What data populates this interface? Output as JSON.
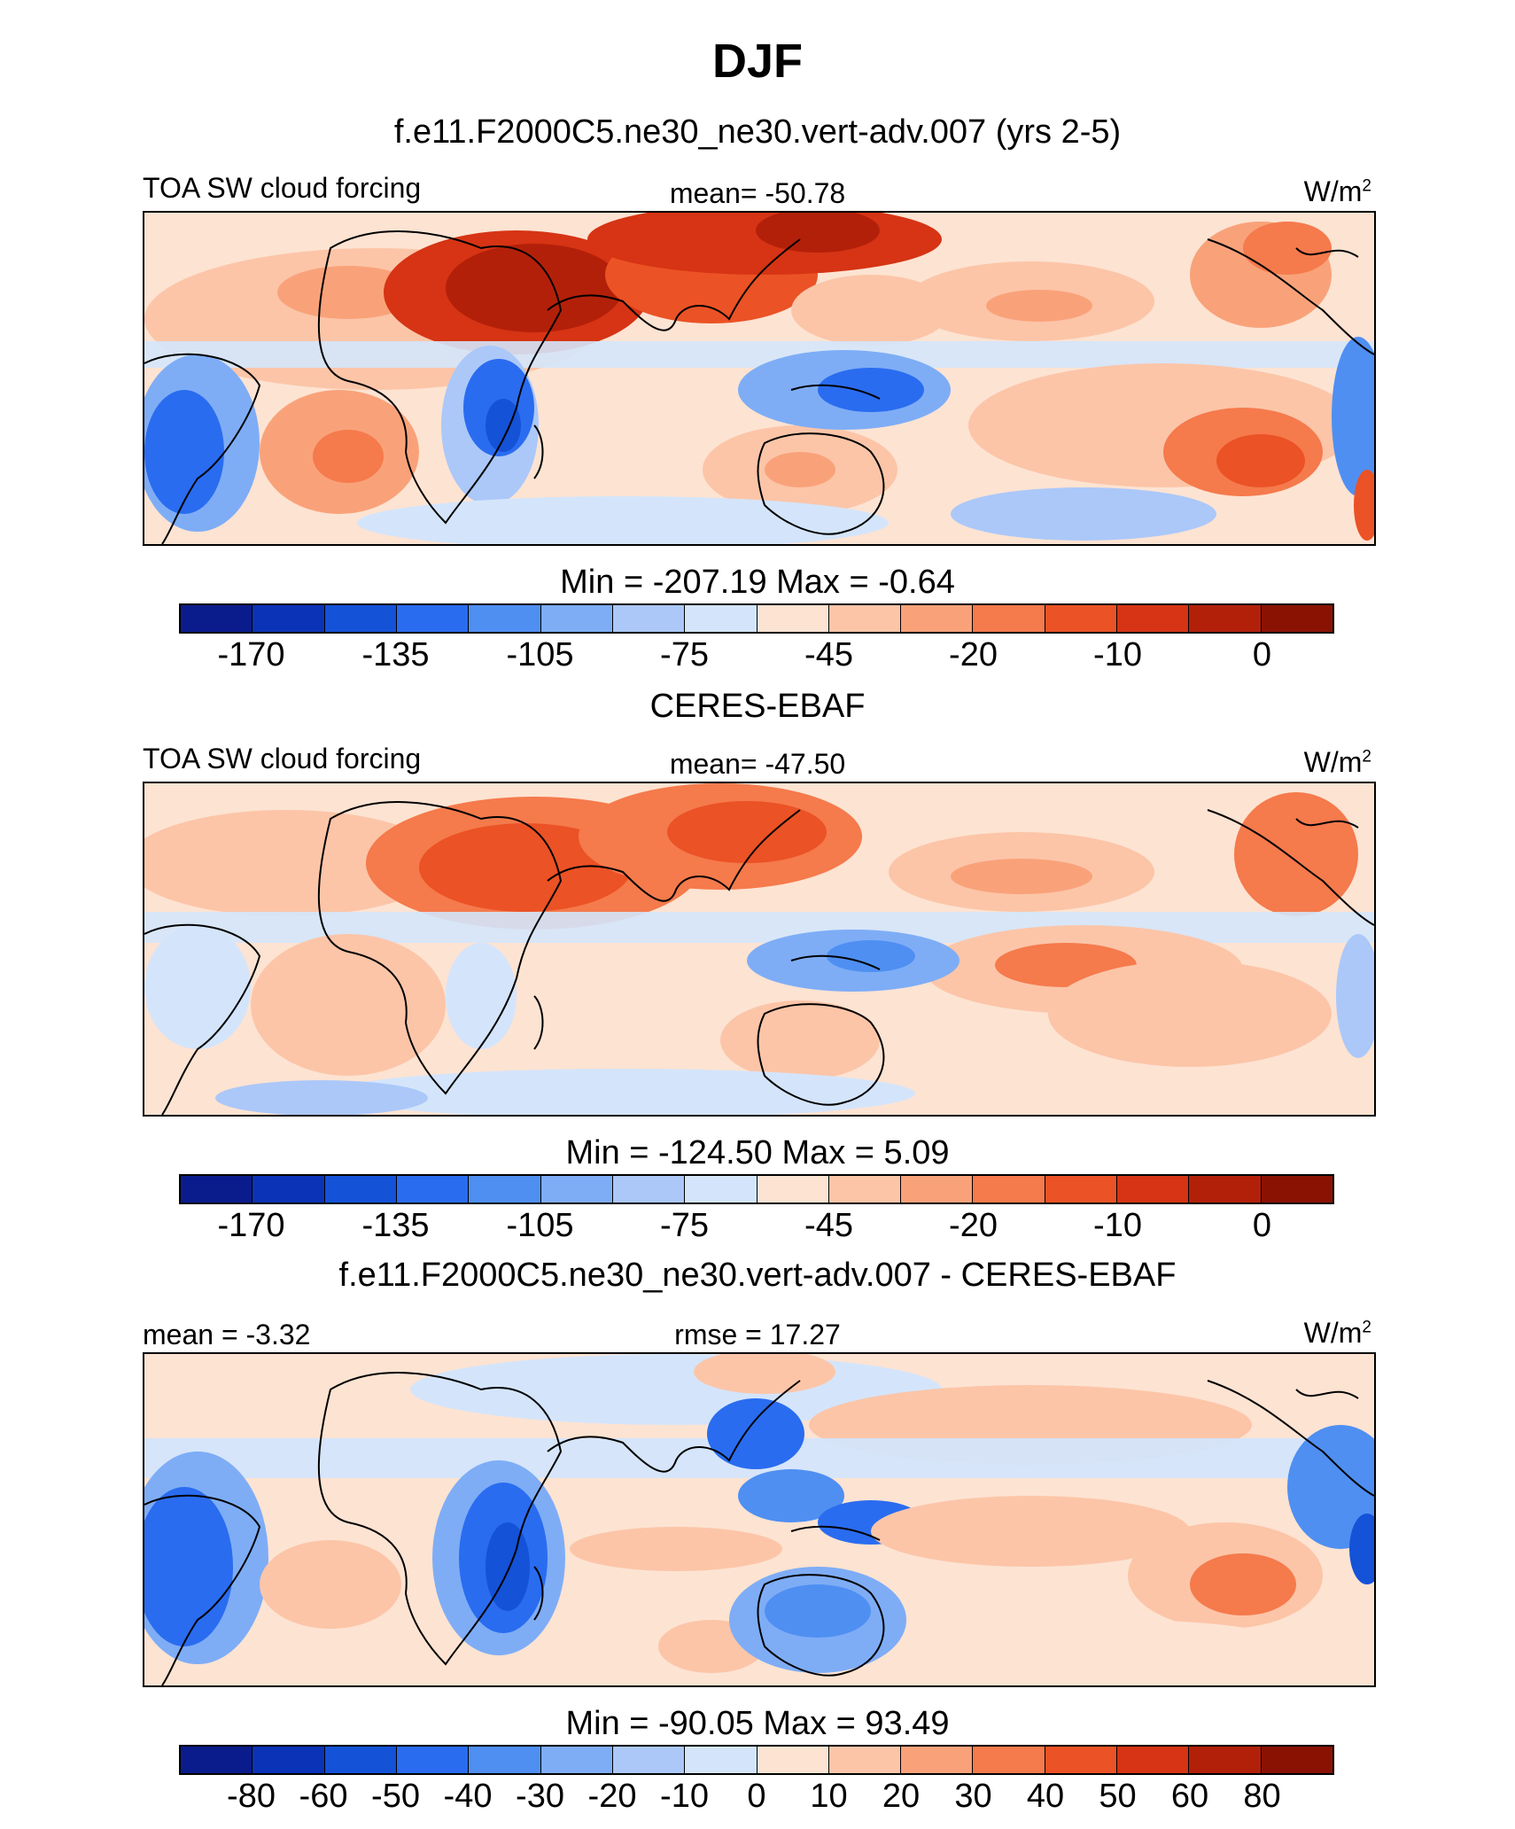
{
  "figure": {
    "title": "DJF",
    "case_title": "f.e11.F2000C5.ne30_ne30.vert-adv.007 (yrs 2-5)",
    "units_text": "W/m",
    "units_exp": "2"
  },
  "panels": [
    {
      "id": "model",
      "variable": "TOA SW cloud forcing",
      "center_label": "mean= -50.78",
      "minmax": "Min = -207.19 Max =  -0.64",
      "colorbar_ticks": [
        "-170",
        "-135",
        "-105",
        "-75",
        "-45",
        "-20",
        "-10",
        "0"
      ]
    },
    {
      "id": "obs",
      "heading": "CERES-EBAF",
      "variable": "TOA SW cloud forcing",
      "center_label": "mean= -47.50",
      "minmax": "Min = -124.50 Max =   5.09",
      "colorbar_ticks": [
        "-170",
        "-135",
        "-105",
        "-75",
        "-45",
        "-20",
        "-10",
        "0"
      ]
    },
    {
      "id": "diff",
      "heading": "f.e11.F2000C5.ne30_ne30.vert-adv.007 - CERES-EBAF",
      "left_label": "mean =  -3.32",
      "center_label": "rmse =  17.27",
      "minmax": "Min = -90.05 Max =  93.49",
      "colorbar_ticks": [
        "-80",
        "-60",
        "-50",
        "-40",
        "-30",
        "-20",
        "-10",
        "0",
        "10",
        "20",
        "30",
        "40",
        "50",
        "60",
        "80"
      ]
    }
  ],
  "colors": {
    "palette": [
      "#0a1c8c",
      "#0b33b8",
      "#1452d8",
      "#2a6cf0",
      "#4f8ff2",
      "#7eadf6",
      "#abc8f9",
      "#d4e5fb",
      "#fde3d2",
      "#fcc5a8",
      "#f9a27a",
      "#f57a4c",
      "#eb5225",
      "#d63414",
      "#b3200a",
      "#8a1203"
    ],
    "coastline": "#000000"
  }
}
